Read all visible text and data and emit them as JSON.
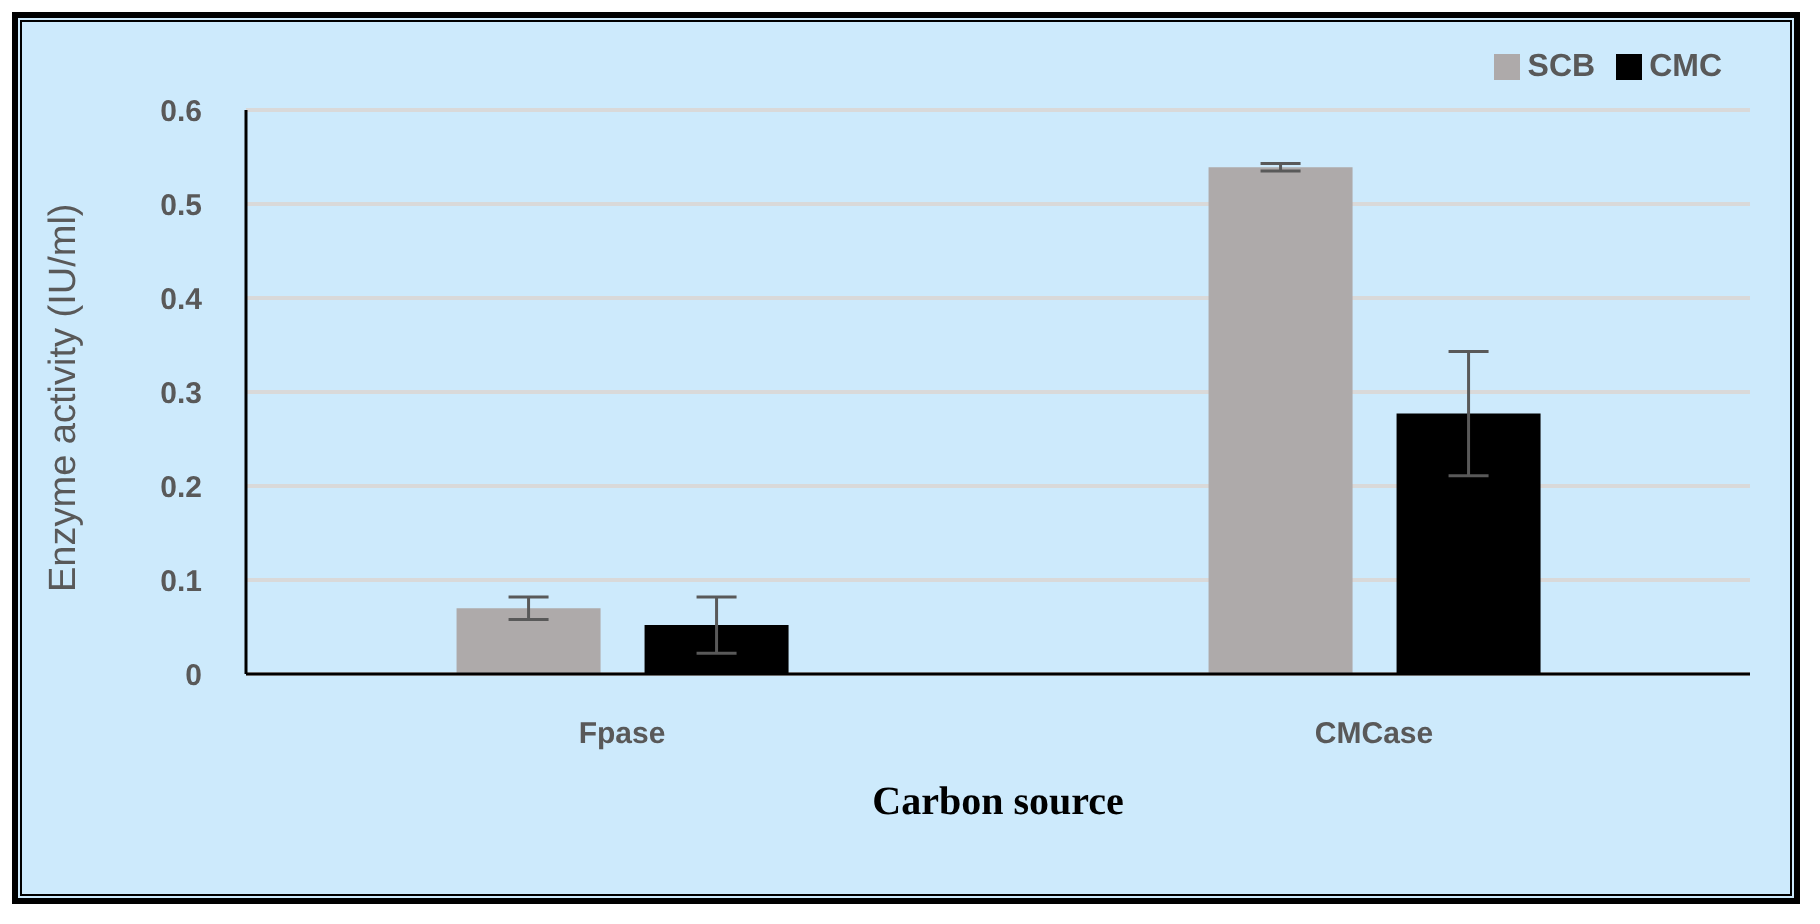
{
  "chart_data": {
    "type": "bar",
    "xlabel": "Carbon source",
    "ylabel": "Enzyme activity (IU/ml)",
    "categories": [
      "Fpase",
      "CMCase"
    ],
    "series": [
      {
        "name": "SCB",
        "color": "#aeaaaa",
        "values": [
          0.07,
          0.539
        ],
        "errors": [
          0.012,
          0.004
        ]
      },
      {
        "name": "CMC",
        "color": "#000000",
        "values": [
          0.052,
          0.277
        ],
        "errors": [
          0.03,
          0.066
        ]
      }
    ],
    "ylim": [
      0,
      0.6
    ],
    "yticks": [
      0,
      0.1,
      0.2,
      0.3,
      0.4,
      0.5,
      0.6
    ],
    "grid": "y",
    "legend": "top right"
  }
}
